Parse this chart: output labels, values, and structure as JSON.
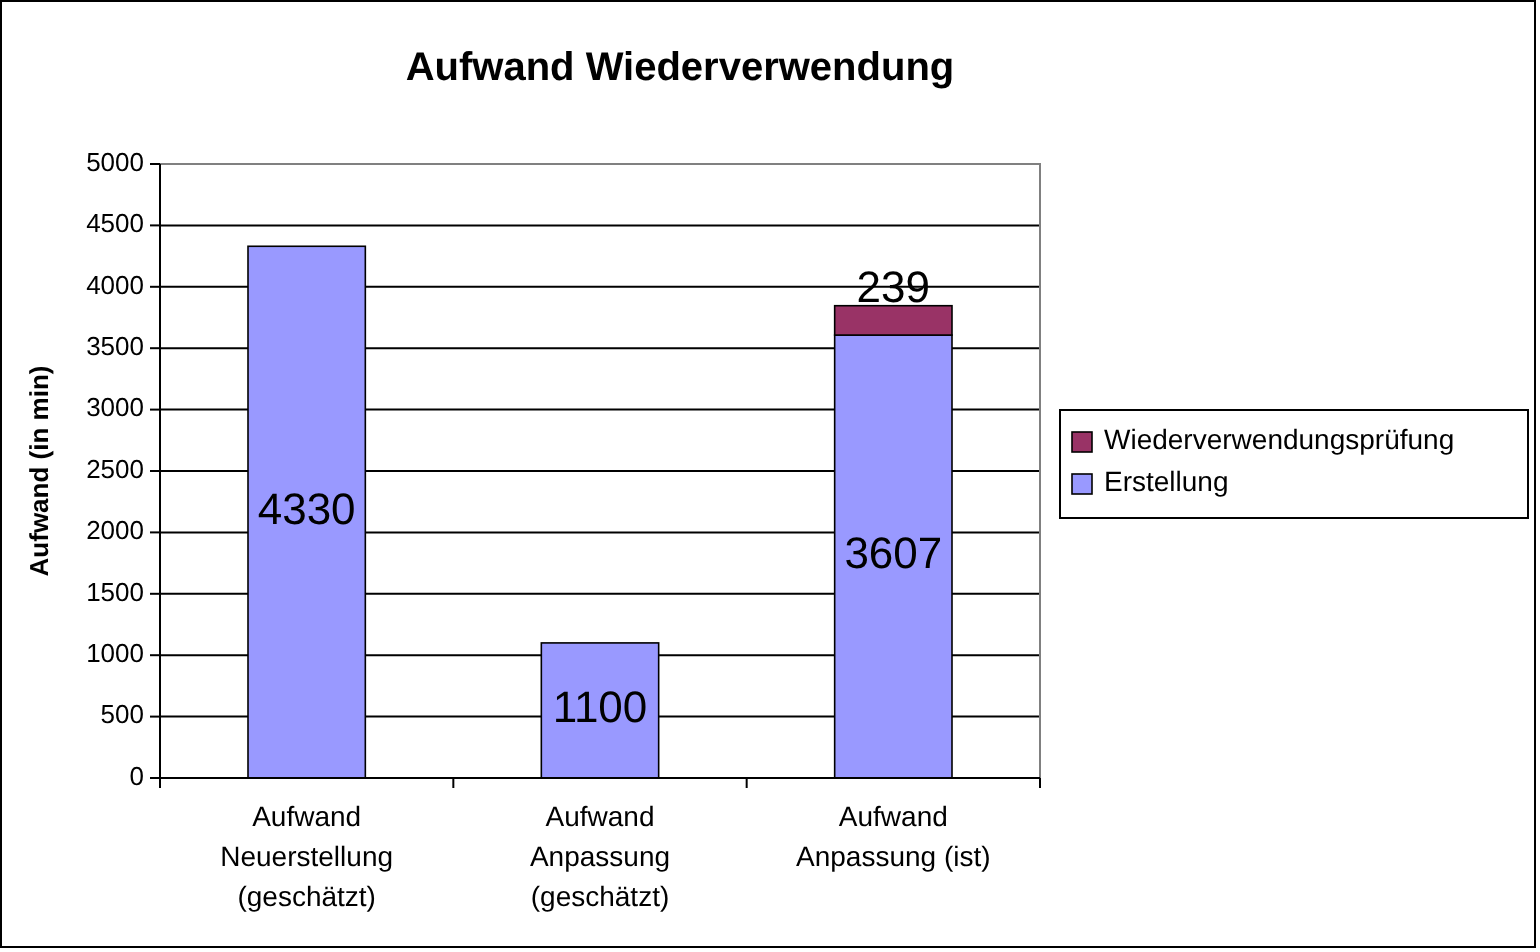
{
  "chart_data": {
    "type": "bar",
    "title": "Aufwand Wiederverwendung",
    "ylabel": "Aufwand (in min)",
    "categories": [
      "Aufwand\nNeuerstellung\n(geschätzt)",
      "Aufwand\nAnpassung\n(geschätzt)",
      "Aufwand\nAnpassung (ist)"
    ],
    "stacked": true,
    "series": [
      {
        "name": "Erstellung",
        "color": "#9999ff",
        "values": [
          4330,
          1100,
          3607
        ]
      },
      {
        "name": "Wiederverwendungsprüfung",
        "color": "#993366",
        "values": [
          null,
          null,
          239
        ]
      }
    ],
    "ylim": [
      0,
      5000
    ],
    "yticks": [
      0,
      500,
      1000,
      1500,
      2000,
      2500,
      3000,
      3500,
      4000,
      4500,
      5000
    ],
    "grid": "y",
    "legend": "right",
    "data_labels": true
  }
}
